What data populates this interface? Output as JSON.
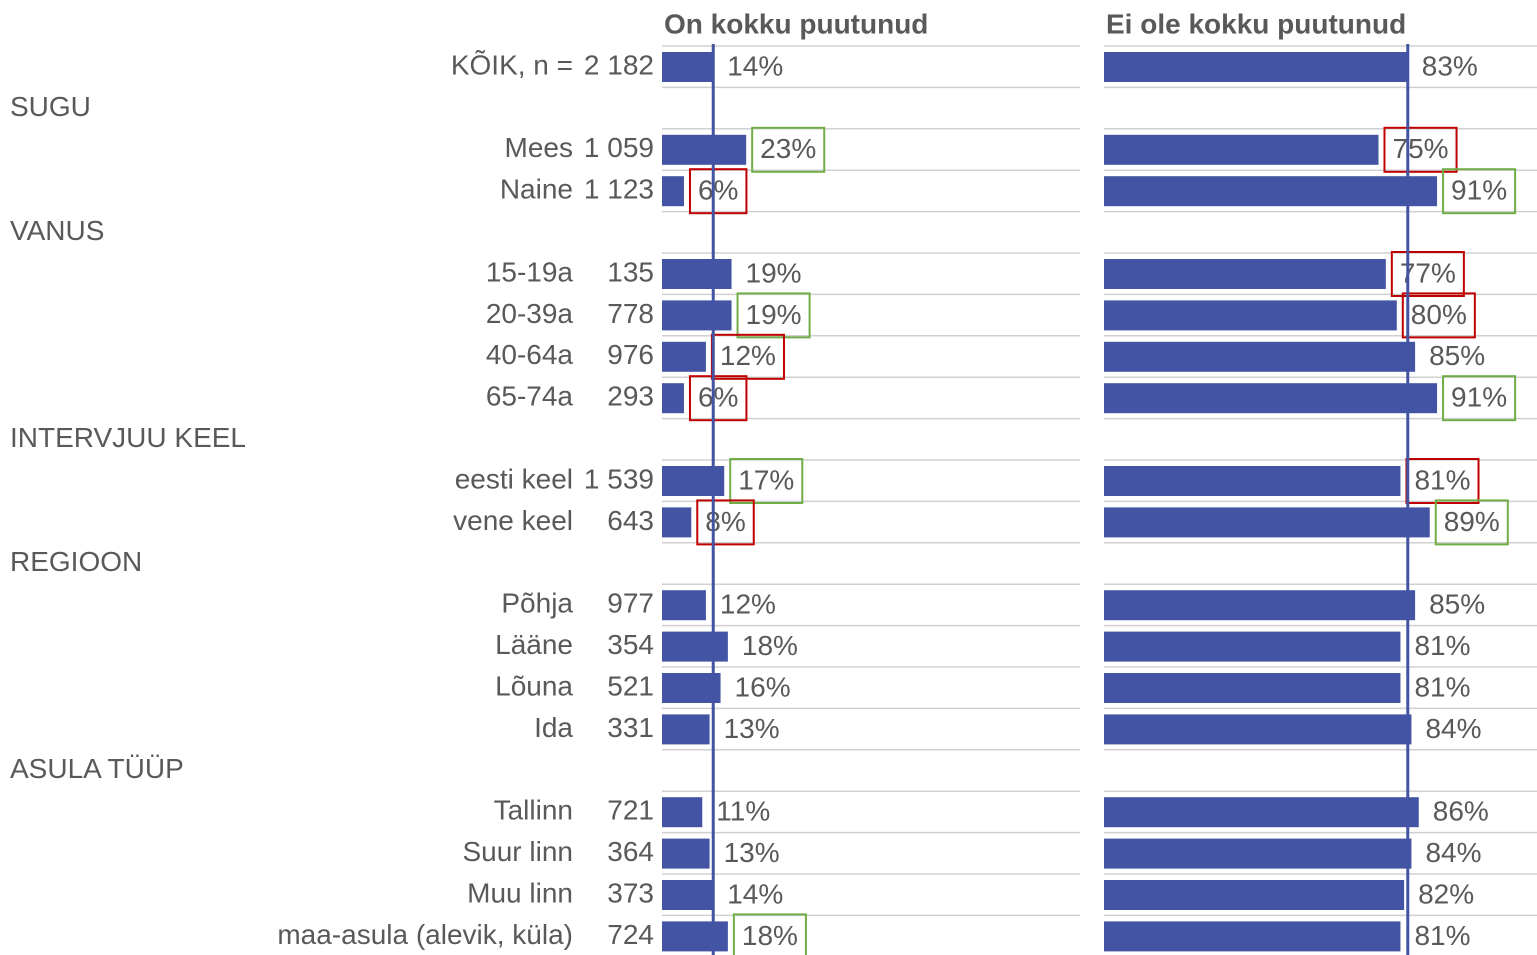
{
  "chart_data": {
    "type": "bar",
    "orientation": "horizontal",
    "headers": [
      null,
      "SUGU",
      null,
      null,
      "VANUS",
      null,
      null,
      null,
      null,
      "INTERVJUU KEEL",
      null,
      null,
      "REGIOON",
      null,
      null,
      null,
      null,
      "ASULA TÜÜP",
      null,
      null,
      null,
      null
    ],
    "categories": [
      "KÕIK, n =",
      null,
      "Mees",
      "Naine",
      null,
      "15-19a",
      "20-39a",
      "40-64a",
      "65-74a",
      null,
      "eesti keel",
      "vene keel",
      null,
      "Põhja",
      "Lääne",
      "Lõuna",
      "Ida",
      null,
      "Tallinn",
      "Suur linn",
      "Muu linn",
      "maa-asula (alevik, küla)"
    ],
    "n": [
      "2 182",
      null,
      "1 059",
      "1 123",
      null,
      "135",
      "778",
      "976",
      "293",
      null,
      "1 539",
      "643",
      null,
      "977",
      "354",
      "521",
      "331",
      null,
      "721",
      "364",
      "373",
      "724"
    ],
    "xlim": [
      0,
      100
    ],
    "series": [
      {
        "name": "On kokku puutunud",
        "color": "#4454a4",
        "values": [
          14,
          null,
          23,
          6,
          null,
          19,
          19,
          12,
          6,
          null,
          17,
          8,
          null,
          12,
          18,
          16,
          13,
          null,
          11,
          13,
          14,
          18
        ],
        "value_labels": [
          "14%",
          null,
          "23%",
          "6%",
          null,
          "19%",
          "19%",
          "12%",
          "6%",
          null,
          "17%",
          "8%",
          null,
          "12%",
          "18%",
          "16%",
          "13%",
          null,
          "11%",
          "13%",
          "14%",
          "18%"
        ],
        "box_colors": [
          null,
          null,
          "#70ad47",
          "#c00000",
          null,
          null,
          "#70ad47",
          "#c00000",
          "#c00000",
          null,
          "#70ad47",
          "#c00000",
          null,
          null,
          null,
          null,
          null,
          null,
          null,
          null,
          null,
          "#70ad47"
        ]
      },
      {
        "name": "Ei ole kokku puutunud",
        "color": "#4454a4",
        "values": [
          83,
          null,
          75,
          91,
          null,
          77,
          80,
          85,
          91,
          null,
          81,
          89,
          null,
          85,
          81,
          81,
          84,
          null,
          86,
          84,
          82,
          81
        ],
        "value_labels": [
          "83%",
          null,
          "75%",
          "91%",
          null,
          "77%",
          "80%",
          "85%",
          "91%",
          null,
          "81%",
          "89%",
          null,
          "85%",
          "81%",
          "81%",
          "84%",
          null,
          "86%",
          "84%",
          "82%",
          "81%"
        ],
        "box_colors": [
          null,
          null,
          "#c00000",
          "#70ad47",
          null,
          "#c00000",
          "#c00000",
          null,
          "#70ad47",
          null,
          "#c00000",
          "#70ad47",
          null,
          null,
          null,
          null,
          null,
          null,
          null,
          null,
          null,
          null
        ]
      }
    ]
  }
}
